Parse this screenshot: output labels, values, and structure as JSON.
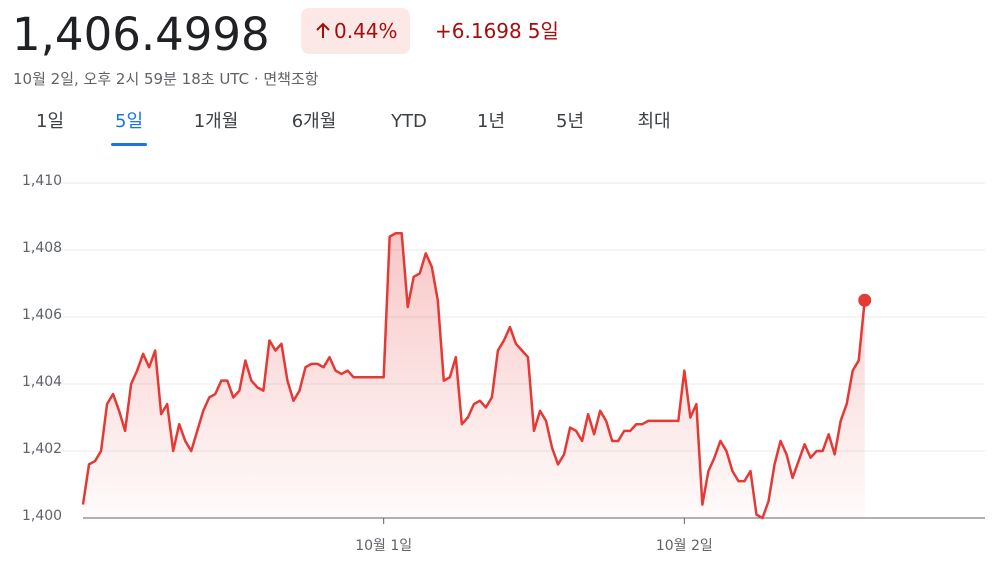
{
  "header": {
    "price": "1,406.4998",
    "change_percent": "0.44%",
    "change_value": "+6.1698",
    "period": "5일",
    "timestamp": "10월 2일, 오후 2시 59분 18초 UTC · 면책조항"
  },
  "tabs": [
    "1일",
    "5일",
    "1개월",
    "6개월",
    "YTD",
    "1년",
    "5년",
    "최대"
  ],
  "active_tab": 1,
  "chart_data": {
    "type": "line",
    "color": "#e53935",
    "x": [
      0,
      1,
      2,
      3,
      4,
      5,
      6,
      7,
      8,
      9,
      10,
      11,
      12,
      13,
      14,
      15,
      16,
      17,
      18,
      19,
      20,
      21,
      22,
      23,
      24,
      25,
      26,
      27,
      28,
      29,
      30,
      31,
      32,
      33,
      34,
      35,
      36,
      37,
      38,
      39,
      40,
      41,
      42,
      43,
      44,
      45,
      46,
      47,
      48,
      49,
      50,
      51,
      52,
      53,
      54,
      55,
      56,
      57,
      58,
      59,
      60,
      61,
      62,
      63,
      64,
      65,
      66,
      67,
      68,
      69,
      70,
      71,
      72,
      73,
      74,
      75,
      76,
      77,
      78,
      79,
      80,
      81,
      82,
      83,
      84,
      85,
      86,
      87,
      88,
      89,
      90,
      91,
      92,
      93,
      94,
      95,
      96,
      97,
      98,
      99,
      100,
      101,
      102,
      103,
      104,
      105,
      106,
      107,
      108,
      109,
      110,
      111,
      112,
      113,
      114,
      115,
      116,
      117,
      118,
      119,
      120,
      121,
      122,
      123,
      124,
      125,
      126,
      127,
      128,
      129,
      130
    ],
    "values": [
      1400.4,
      1401.6,
      1401.7,
      1402.0,
      1403.4,
      1403.7,
      1403.2,
      1402.6,
      1404.0,
      1404.4,
      1404.9,
      1404.5,
      1405.0,
      1403.1,
      1403.4,
      1402.0,
      1402.8,
      1402.3,
      1402.0,
      1402.6,
      1403.2,
      1403.6,
      1403.7,
      1404.1,
      1404.1,
      1403.6,
      1403.8,
      1404.7,
      1404.1,
      1403.9,
      1403.8,
      1405.3,
      1405.0,
      1405.2,
      1404.1,
      1403.5,
      1403.8,
      1404.5,
      1404.6,
      1404.6,
      1404.5,
      1404.8,
      1404.4,
      1404.3,
      1404.4,
      1404.2,
      1404.2,
      1404.2,
      1404.2,
      1404.2,
      1404.2,
      1408.4,
      1408.5,
      1408.5,
      1406.3,
      1407.2,
      1407.3,
      1407.9,
      1407.5,
      1406.5,
      1404.1,
      1404.2,
      1404.8,
      1402.8,
      1403.0,
      1403.4,
      1403.5,
      1403.3,
      1403.6,
      1405.0,
      1405.3,
      1405.7,
      1405.2,
      1405.0,
      1404.8,
      1402.6,
      1403.2,
      1402.9,
      1402.1,
      1401.6,
      1401.9,
      1402.7,
      1402.6,
      1402.3,
      1403.1,
      1402.5,
      1403.2,
      1402.9,
      1402.3,
      1402.3,
      1402.6,
      1402.6,
      1402.8,
      1402.8,
      1402.9,
      1402.9,
      1402.9,
      1402.9,
      1402.9,
      1402.9,
      1404.4,
      1403.0,
      1403.4,
      1400.4,
      1401.4,
      1401.8,
      1402.3,
      1402.0,
      1401.4,
      1401.1,
      1401.1,
      1401.4,
      1400.1,
      1400.0,
      1400.5,
      1401.6,
      1402.3,
      1401.9,
      1401.2,
      1401.7,
      1402.2,
      1401.8,
      1402.0,
      1402.0,
      1402.5,
      1401.9,
      1402.9,
      1403.4,
      1404.4,
      1404.7,
      1406.5
    ],
    "xlim": [
      0,
      150
    ],
    "xticks": [
      {
        "value": 50,
        "label": "10월 1일"
      },
      {
        "value": 100,
        "label": "10월 2일"
      }
    ],
    "ylim": [
      1400,
      1410
    ],
    "yticks": [
      {
        "value": 1400,
        "label": "1,400"
      },
      {
        "value": 1402,
        "label": "1,402"
      },
      {
        "value": 1404,
        "label": "1,404"
      },
      {
        "value": 1406,
        "label": "1,406"
      },
      {
        "value": 1408,
        "label": "1,408"
      },
      {
        "value": 1410,
        "label": "1,410"
      }
    ],
    "grid": true
  }
}
